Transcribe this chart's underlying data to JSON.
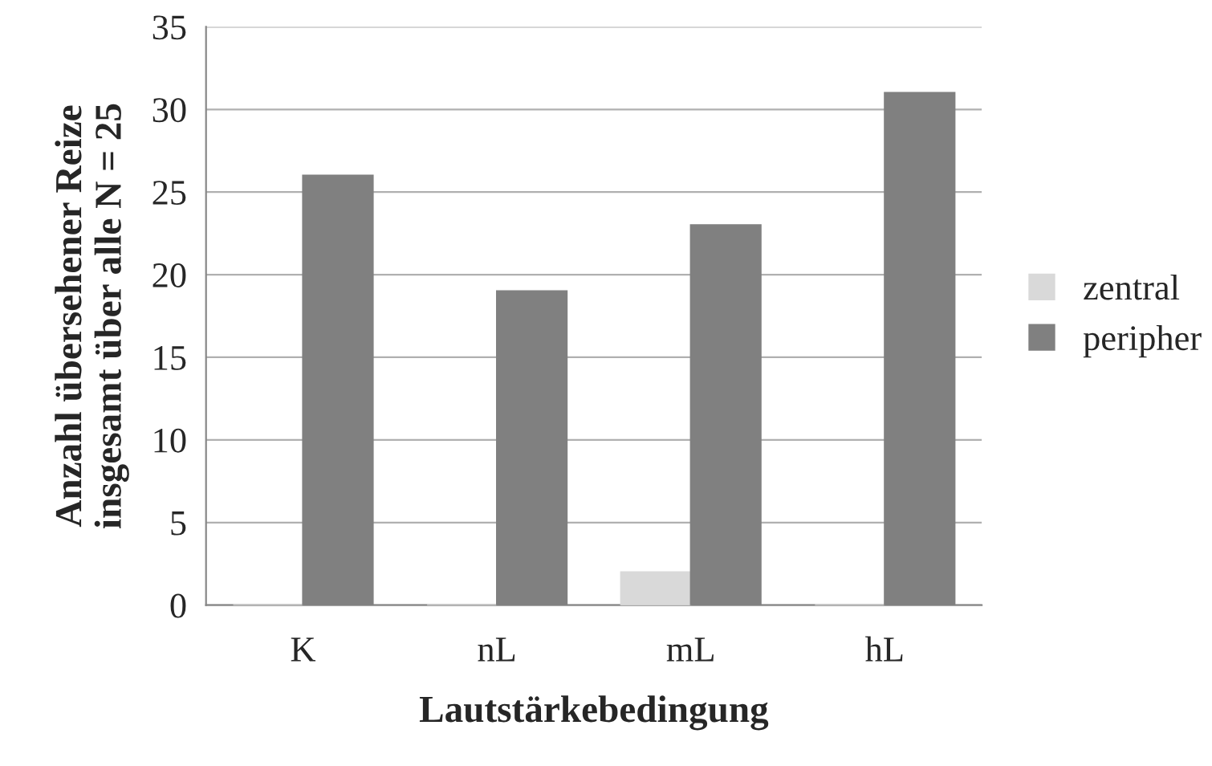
{
  "chart_data": {
    "type": "bar",
    "xlabel": "Lautstärkebedingung",
    "ylabel": "Anzahl übersehener Reize\ninsgesamt über alle N = 25",
    "categories": [
      "K",
      "nL",
      "mL",
      "hL"
    ],
    "series": [
      {
        "name": "zentral",
        "color": "#d9d9d9",
        "values": [
          0,
          0,
          2,
          0
        ]
      },
      {
        "name": "peripher",
        "color": "#808080",
        "values": [
          26,
          19,
          23,
          31
        ]
      }
    ],
    "ylim": [
      0,
      35
    ],
    "yticks": [
      0,
      5,
      10,
      15,
      20,
      25,
      30,
      35
    ],
    "grid": "y",
    "legend": "right"
  }
}
